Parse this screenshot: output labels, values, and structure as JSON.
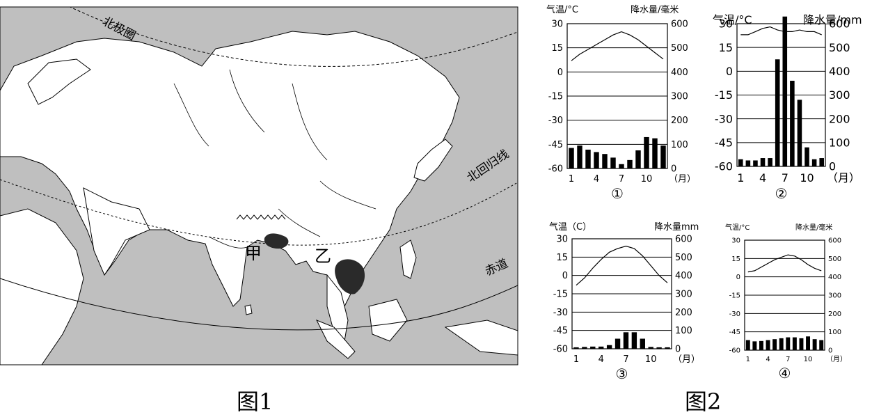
{
  "fig1": {
    "caption": "图1",
    "labels": {
      "arctic_circle": "北极圈",
      "tropic_of_cancer": "北回归线",
      "equator": "赤道",
      "region_a": "甲",
      "region_b": "乙"
    }
  },
  "fig2": {
    "caption": "图2",
    "charts": [
      {
        "id": "①",
        "temp_label": "气温/°C",
        "precip_label": "降水量/毫米",
        "temp_ticks": [
          "30",
          "15",
          "0",
          "-15",
          "-30",
          "-45",
          "-60"
        ],
        "precip_ticks": [
          "600",
          "500",
          "400",
          "300",
          "200",
          "100",
          "0"
        ],
        "month_ticks": [
          "1",
          "4",
          "7",
          "10"
        ],
        "month_unit": "（月）",
        "temp": [
          7,
          11,
          14,
          17,
          20,
          23,
          25,
          23,
          20,
          16,
          12,
          8
        ],
        "precip": [
          85,
          95,
          78,
          68,
          60,
          45,
          18,
          35,
          75,
          130,
          125,
          95
        ]
      },
      {
        "id": "②",
        "temp_label": "气温/°C",
        "precip_label": "降水量/mm",
        "temp_ticks": [
          "30",
          "15",
          "0",
          "-15",
          "-30",
          "-45",
          "-60"
        ],
        "precip_ticks": [
          "600",
          "500",
          "400",
          "300",
          "200",
          "100",
          "0"
        ],
        "month_ticks": [
          "1",
          "4",
          "7",
          "10"
        ],
        "month_unit": "（月）",
        "temp": [
          23,
          23,
          25,
          27,
          28,
          26,
          25,
          25,
          26,
          25,
          25,
          23
        ],
        "precip": [
          30,
          25,
          25,
          35,
          35,
          450,
          630,
          360,
          280,
          80,
          30,
          35
        ]
      },
      {
        "id": "③",
        "temp_label": "气温（C）",
        "precip_label": "降水量mm",
        "temp_ticks": [
          "30",
          "15",
          "0",
          "-15",
          "-30",
          "-45",
          "-60"
        ],
        "precip_ticks": [
          "600",
          "500",
          "400",
          "300",
          "200",
          "100",
          "0"
        ],
        "month_ticks": [
          "1",
          "4",
          "7",
          "10"
        ],
        "month_unit": "（月）",
        "temp": [
          -8,
          -2,
          6,
          13,
          19,
          22,
          24,
          22,
          16,
          8,
          0,
          -6
        ],
        "precip": [
          8,
          10,
          12,
          12,
          20,
          55,
          90,
          90,
          55,
          10,
          8,
          8
        ]
      },
      {
        "id": "④",
        "temp_label": "气温/°C",
        "precip_label": "降水量/毫米",
        "temp_ticks": [
          "30",
          "15",
          "0",
          "-15",
          "-30",
          "-45",
          "-60"
        ],
        "precip_ticks": [
          "600",
          "500",
          "400",
          "300",
          "200",
          "100",
          "0"
        ],
        "month_ticks": [
          "1",
          "4",
          "7",
          "10"
        ],
        "month_unit": "（月）",
        "temp": [
          4,
          5,
          8,
          11,
          14,
          16,
          18,
          17,
          14,
          10,
          7,
          5
        ],
        "precip": [
          55,
          48,
          50,
          55,
          60,
          65,
          70,
          70,
          65,
          75,
          60,
          55
        ]
      }
    ]
  }
}
